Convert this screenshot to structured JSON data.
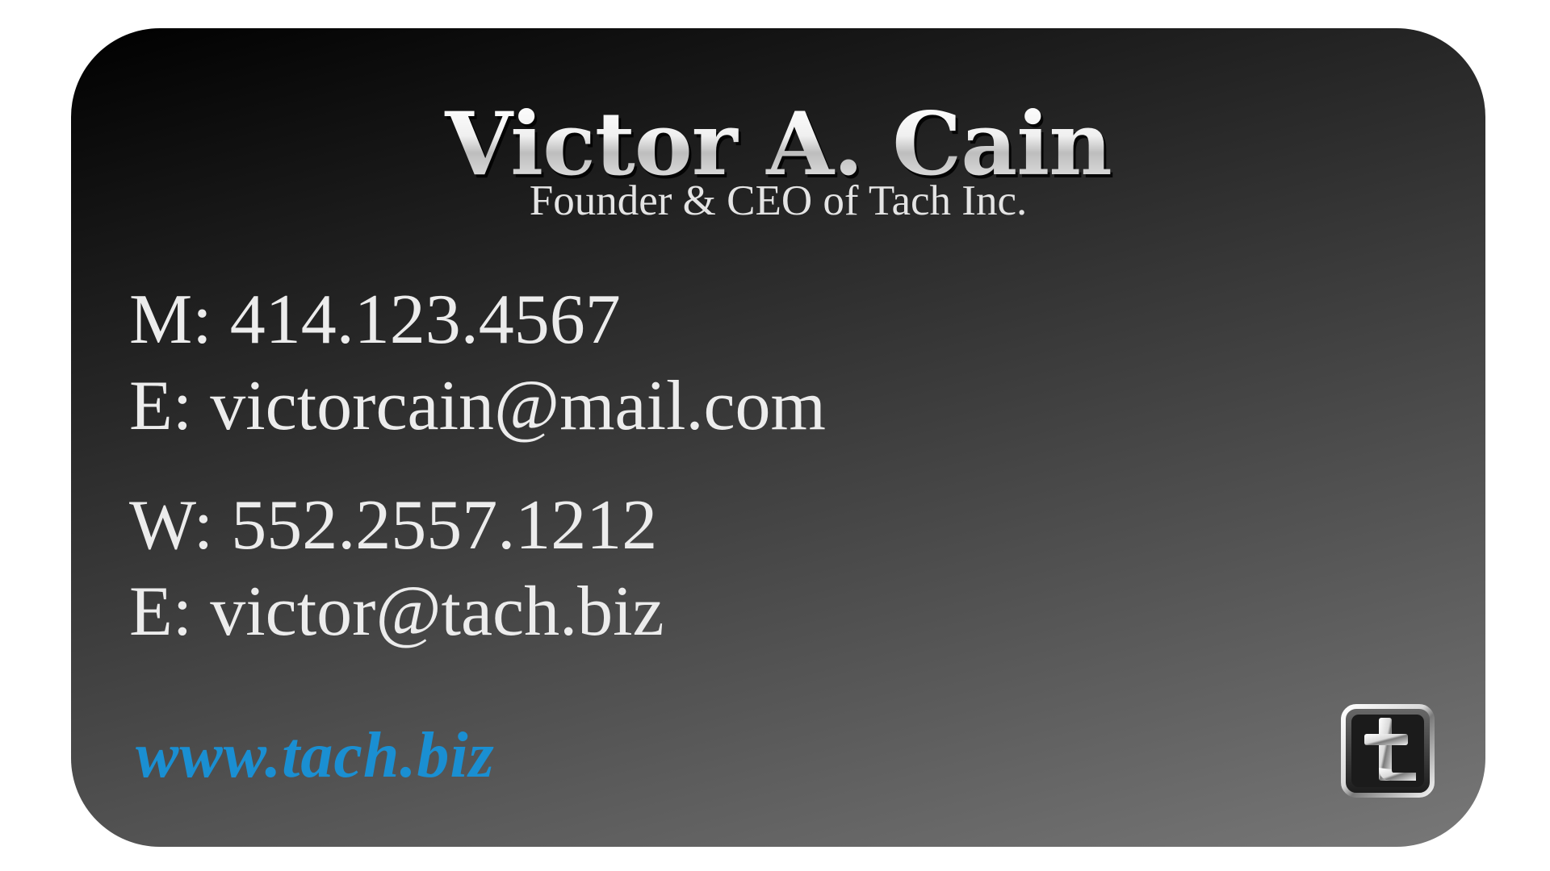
{
  "card": {
    "name": "Victor A. Cain",
    "title": "Founder & CEO of Tach Inc.",
    "contacts": [
      {
        "label": "M:",
        "value": "414.123.4567"
      },
      {
        "label": "E:",
        "value": "victorcain@mail.com"
      },
      {
        "label": "W:",
        "value": "552.2557.1212"
      },
      {
        "label": "E:",
        "value": "victor@tach.biz"
      }
    ],
    "website": "www.tach.biz",
    "logo_icon": "tach-t-logo-icon",
    "accent_color": "#1a8fd2"
  }
}
